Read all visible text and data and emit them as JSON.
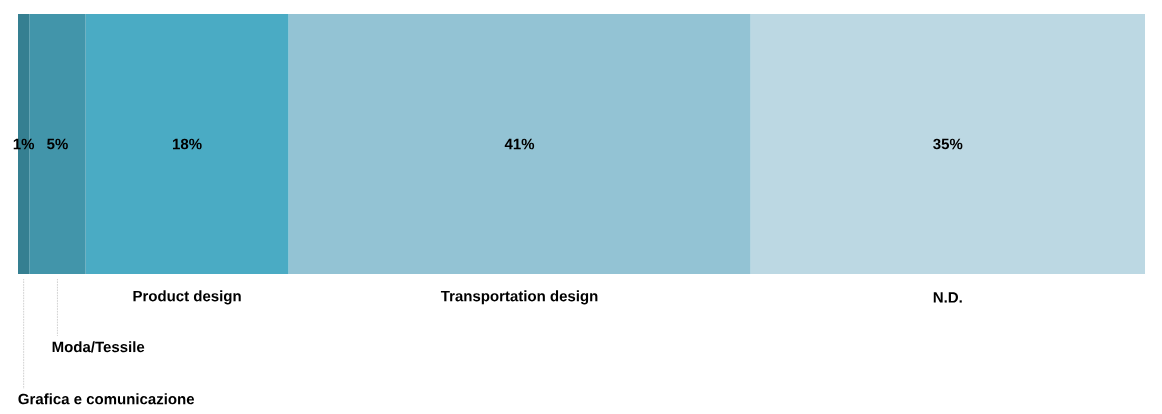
{
  "chart_data": {
    "type": "bar",
    "orientation": "horizontal",
    "stacked": true,
    "categories": [
      null
    ],
    "series": [
      {
        "name": "Grafica e comunicazione",
        "color": "#357f91",
        "values": [
          1
        ],
        "value_labels": [
          "1%"
        ]
      },
      {
        "name": "Moda/Tessile",
        "color": "#4295aa",
        "values": [
          5
        ],
        "value_labels": [
          "5%"
        ]
      },
      {
        "name": "Product design",
        "color": "#4aabc4",
        "values": [
          18
        ],
        "value_labels": [
          "18%"
        ]
      },
      {
        "name": "Transportation design",
        "color": "#93c3d4",
        "values": [
          41
        ],
        "value_labels": [
          "41%"
        ]
      },
      {
        "name": "N.D.",
        "color": "#bcd8e3",
        "values": [
          35
        ],
        "value_labels": [
          "35%"
        ]
      }
    ]
  }
}
